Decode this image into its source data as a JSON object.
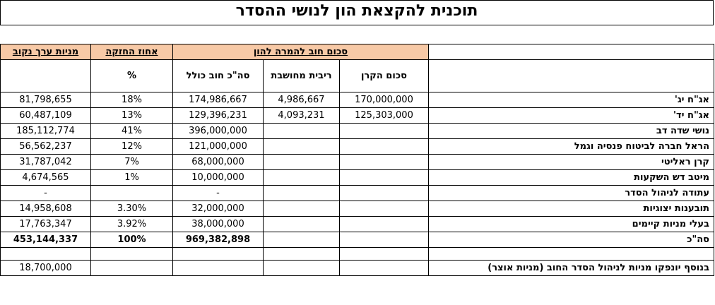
{
  "title": "תוכנית להקצאת הון לנושי ההסדר",
  "headers": {
    "units_nominal": "מניות ערך נקוב",
    "holding_pct": "אחוז החזקה",
    "debt_conversion": "סכום חוב להמרה להון",
    "pct_symbol": "%",
    "total_debt": "סה\"כ חוב כולל",
    "computed_interest": "ריבית מחושבת",
    "principal": "סכום הקרן"
  },
  "rows": [
    {
      "label": "אג\"ח יג'",
      "units": "81,798,655",
      "pct": "18%",
      "total": "174,986,667",
      "interest": "4,986,667",
      "principal": "170,000,000"
    },
    {
      "label": "אג\"ח יד'",
      "units": "60,487,109",
      "pct": "13%",
      "total": "129,396,231",
      "interest": "4,093,231",
      "principal": "125,303,000"
    },
    {
      "label": "נושי שדה דב",
      "units": "185,112,774",
      "pct": "41%",
      "total": "396,000,000",
      "interest": "",
      "principal": ""
    },
    {
      "label": "הראל חברה לביטוח פנסיה וגמל",
      "units": "56,562,237",
      "pct": "12%",
      "total": "121,000,000",
      "interest": "",
      "principal": ""
    },
    {
      "label": "קרן ראליטי",
      "units": "31,787,042",
      "pct": "7%",
      "total": "68,000,000",
      "interest": "",
      "principal": ""
    },
    {
      "label": "מיטב דש השקעות",
      "units": "4,674,565",
      "pct": "1%",
      "total": "10,000,000",
      "interest": "",
      "principal": ""
    },
    {
      "label": "עתודה לניהול הסדר",
      "units": "-",
      "pct": "",
      "total": "-",
      "interest": "",
      "principal": ""
    },
    {
      "label": "תובענות יצוגיות",
      "units": "14,958,608",
      "pct": "3.30%",
      "total": "32,000,000",
      "interest": "",
      "principal": ""
    },
    {
      "label": "בעלי מניות קיימים",
      "units": "17,763,347",
      "pct": "3.92%",
      "total": "38,000,000",
      "interest": "",
      "principal": ""
    }
  ],
  "total_row": {
    "label": "סה\"כ",
    "units": "453,144,337",
    "pct": "100%",
    "total": "969,382,898"
  },
  "footer_row": {
    "label": "בנוסף יונפקו מניות לניהול הסדר החוב (מניות אוצר)",
    "units": "18,700,000"
  }
}
